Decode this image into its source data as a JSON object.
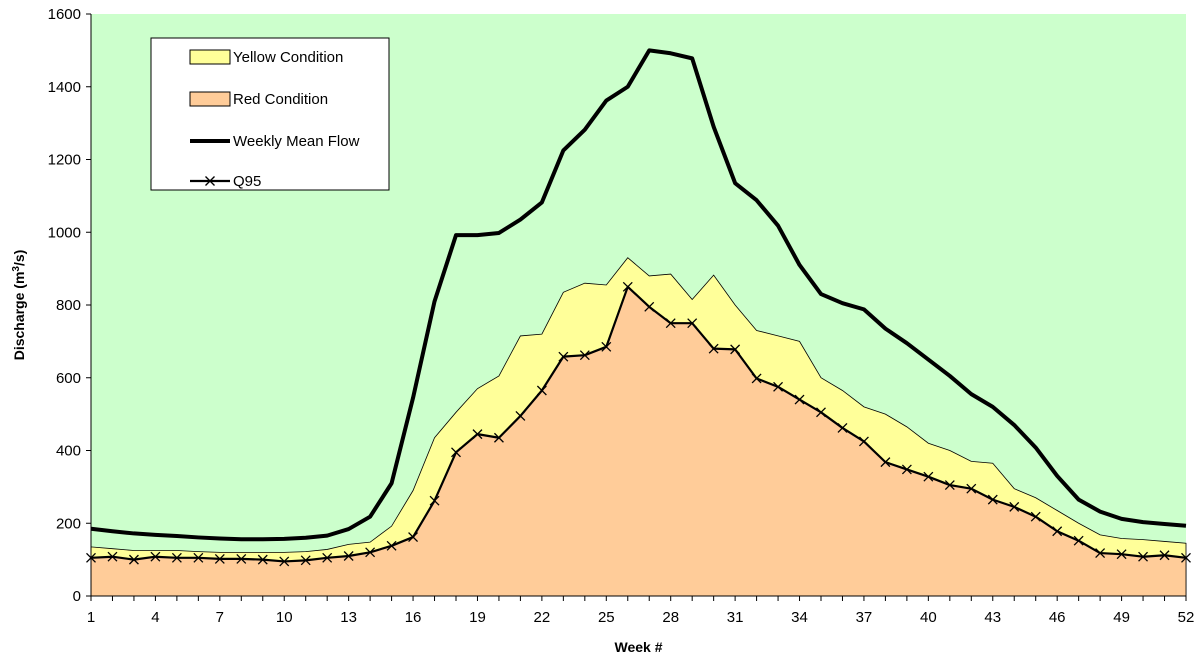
{
  "chart_data": {
    "type": "area",
    "xlabel": "Week #",
    "ylabel_main": "Discharge (m",
    "ylabel_sup": "3",
    "ylabel_end": "/s)",
    "ylim": [
      0,
      1600
    ],
    "yticks": [
      0,
      200,
      400,
      600,
      800,
      1000,
      1200,
      1400,
      1600
    ],
    "xlim": [
      1,
      52
    ],
    "xticks": [
      1,
      4,
      7,
      10,
      13,
      16,
      19,
      22,
      25,
      28,
      31,
      34,
      37,
      40,
      43,
      46,
      49,
      52
    ],
    "plot_background": "#ccffcc",
    "legend_position": "top-left",
    "x": [
      1,
      2,
      3,
      4,
      5,
      6,
      7,
      8,
      9,
      10,
      11,
      12,
      13,
      14,
      15,
      16,
      17,
      18,
      19,
      20,
      21,
      22,
      23,
      24,
      25,
      26,
      27,
      28,
      29,
      30,
      31,
      32,
      33,
      34,
      35,
      36,
      37,
      38,
      39,
      40,
      41,
      42,
      43,
      44,
      45,
      46,
      47,
      48,
      49,
      50,
      51,
      52
    ],
    "series": [
      {
        "name": "Yellow Condition",
        "style": "area",
        "color": "#ffff99",
        "values": [
          135,
          130,
          125,
          125,
          125,
          122,
          120,
          120,
          120,
          120,
          122,
          128,
          142,
          148,
          192,
          290,
          435,
          505,
          570,
          605,
          715,
          720,
          835,
          860,
          855,
          930,
          880,
          885,
          815,
          882,
          800,
          730,
          715,
          700,
          600,
          565,
          520,
          500,
          465,
          420,
          400,
          370,
          365,
          295,
          270,
          235,
          200,
          168,
          158,
          155,
          150,
          145
        ]
      },
      {
        "name": "Red Condition",
        "style": "area",
        "color": "#ffcc99",
        "values": [
          105,
          108,
          100,
          108,
          105,
          105,
          102,
          102,
          100,
          95,
          98,
          105,
          110,
          120,
          138,
          162,
          262,
          395,
          445,
          435,
          495,
          565,
          658,
          662,
          685,
          850,
          795,
          750,
          750,
          680,
          678,
          598,
          575,
          540,
          505,
          462,
          425,
          368,
          348,
          328,
          305,
          295,
          265,
          245,
          218,
          178,
          152,
          118,
          115,
          108,
          112,
          105
        ]
      },
      {
        "name": "Weekly Mean Flow",
        "style": "line",
        "color": "#000000",
        "values": [
          185,
          178,
          172,
          168,
          165,
          161,
          158,
          156,
          156,
          157,
          160,
          166,
          184,
          218,
          310,
          545,
          810,
          992,
          992,
          998,
          1035,
          1082,
          1225,
          1282,
          1362,
          1400,
          1500,
          1492,
          1478,
          1290,
          1135,
          1088,
          1018,
          910,
          830,
          805,
          788,
          735,
          695,
          650,
          605,
          555,
          520,
          470,
          408,
          330,
          265,
          232,
          212,
          203,
          198,
          193
        ]
      },
      {
        "name": "Q95",
        "style": "line-cross",
        "color": "#000000",
        "values": [
          105,
          108,
          100,
          108,
          105,
          105,
          102,
          102,
          100,
          95,
          98,
          105,
          110,
          120,
          138,
          162,
          262,
          395,
          445,
          435,
          495,
          565,
          658,
          662,
          685,
          850,
          795,
          750,
          750,
          680,
          678,
          598,
          575,
          540,
          505,
          462,
          425,
          368,
          348,
          328,
          305,
          295,
          265,
          245,
          218,
          178,
          152,
          118,
          115,
          108,
          112,
          105
        ]
      }
    ]
  }
}
